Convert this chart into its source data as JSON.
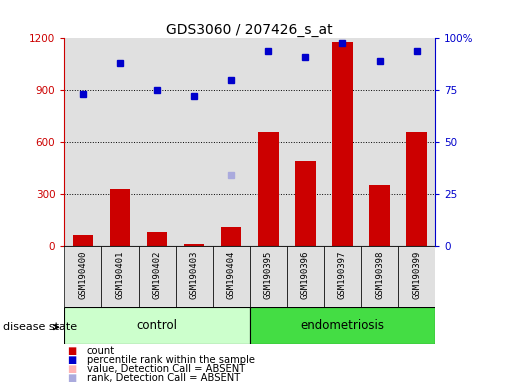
{
  "title": "GDS3060 / 207426_s_at",
  "samples": [
    "GSM190400",
    "GSM190401",
    "GSM190402",
    "GSM190403",
    "GSM190404",
    "GSM190395",
    "GSM190396",
    "GSM190397",
    "GSM190398",
    "GSM190399"
  ],
  "bar_values": [
    60,
    330,
    80,
    10,
    110,
    660,
    490,
    1180,
    350,
    660
  ],
  "percentile_values": [
    73,
    88,
    75,
    72,
    80,
    94,
    91,
    98,
    89,
    94
  ],
  "absent_rank_index": 4,
  "absent_rank_value": 34,
  "bar_color": "#CC0000",
  "percentile_color": "#0000CC",
  "absent_value_color": "#FFB3B3",
  "absent_rank_color": "#AAAADD",
  "left_yaxis_color": "#CC0000",
  "right_yaxis_color": "#0000CC",
  "ylim_left": [
    0,
    1200
  ],
  "ylim_right": [
    0,
    100
  ],
  "yticks_left": [
    0,
    300,
    600,
    900,
    1200
  ],
  "yticks_right": [
    0,
    25,
    50,
    75,
    100
  ],
  "ytick_labels_right": [
    "0",
    "25",
    "50",
    "75",
    "100%"
  ],
  "grid_values": [
    300,
    600,
    900
  ],
  "control_color": "#CCFFCC",
  "endometriosis_color": "#44DD44",
  "bg_color": "#E0E0E0",
  "plot_bg": "#FFFFFF"
}
